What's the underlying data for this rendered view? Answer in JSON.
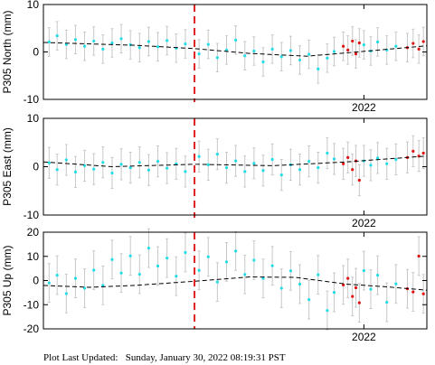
{
  "footer": {
    "label": "Plot Last Updated:",
    "value": "Sunday, January 30, 2022 08:19:31 PST"
  },
  "colors": {
    "main_points": "#22dde8",
    "recent_points": "#e01010",
    "error_bars": "#c8c8c8",
    "trend_line": "#000000",
    "event_line": "#e0201e",
    "axes": "#000000"
  },
  "chart_data": [
    {
      "type": "scatter",
      "ylabel": "P305 North (mm)",
      "ylim": [
        -10,
        10
      ],
      "yticks": [
        -10,
        0,
        10
      ],
      "xlim": [
        2019.2,
        2022.55
      ],
      "xticks": [
        {
          "value": 2022.0,
          "label": "2022"
        }
      ],
      "event_line_x": 2020.52,
      "error_bar_halfwidth": 3,
      "trend": [
        [
          2019.2,
          2.0
        ],
        [
          2020.0,
          1.4
        ],
        [
          2020.52,
          0.7
        ],
        [
          2021.0,
          -0.3
        ],
        [
          2021.5,
          -0.9
        ],
        [
          2021.85,
          -0.2
        ],
        [
          2022.55,
          1.3
        ]
      ],
      "series": [
        {
          "role": "main",
          "points": [
            [
              2019.25,
              2.1
            ],
            [
              2019.32,
              3.4
            ],
            [
              2019.4,
              1.6
            ],
            [
              2019.48,
              2.6
            ],
            [
              2019.56,
              1.2
            ],
            [
              2019.64,
              2.3
            ],
            [
              2019.72,
              0.6
            ],
            [
              2019.8,
              1.9
            ],
            [
              2019.88,
              2.8
            ],
            [
              2019.96,
              1.5
            ],
            [
              2020.04,
              0.9
            ],
            [
              2020.12,
              2.2
            ],
            [
              2020.2,
              1.1
            ],
            [
              2020.28,
              2.4
            ],
            [
              2020.36,
              0.8
            ],
            [
              2020.44,
              1.7
            ],
            [
              2020.56,
              -0.4
            ],
            [
              2020.64,
              1.6
            ],
            [
              2020.72,
              -1.2
            ],
            [
              2020.8,
              0.4
            ],
            [
              2020.88,
              2.5
            ],
            [
              2020.96,
              -0.8
            ],
            [
              2021.04,
              0.2
            ],
            [
              2021.12,
              -2.1
            ],
            [
              2021.2,
              0.6
            ],
            [
              2021.28,
              -1.0
            ],
            [
              2021.36,
              0.3
            ],
            [
              2021.44,
              -1.7
            ],
            [
              2021.52,
              -0.5
            ],
            [
              2021.6,
              -3.6
            ],
            [
              2021.68,
              -1.3
            ],
            [
              2021.74,
              0.1
            ],
            [
              2022.0,
              1.5
            ],
            [
              2022.06,
              0.2
            ],
            [
              2022.12,
              2.1
            ],
            [
              2022.2,
              0.4
            ],
            [
              2022.28,
              1.2
            ]
          ]
        },
        {
          "role": "recent",
          "points": [
            [
              2021.82,
              1.2
            ],
            [
              2021.86,
              0.4
            ],
            [
              2021.9,
              2.3
            ],
            [
              2021.93,
              -0.4
            ],
            [
              2021.96,
              1.9
            ],
            [
              2022.38,
              0.9
            ],
            [
              2022.43,
              1.8
            ],
            [
              2022.48,
              0.6
            ],
            [
              2022.52,
              2.2
            ]
          ]
        }
      ]
    },
    {
      "type": "scatter",
      "ylabel": "P305 East (mm)",
      "ylim": [
        -10,
        10
      ],
      "yticks": [
        -10,
        0,
        10
      ],
      "xlim": [
        2019.2,
        2022.55
      ],
      "xticks": [
        {
          "value": 2022.0,
          "label": "2022"
        }
      ],
      "event_line_x": 2020.52,
      "error_bar_halfwidth": 3.2,
      "trend": [
        [
          2019.2,
          1.0
        ],
        [
          2019.8,
          0.0
        ],
        [
          2020.52,
          0.5
        ],
        [
          2021.2,
          0.2
        ],
        [
          2021.85,
          1.0
        ],
        [
          2022.55,
          2.2
        ]
      ],
      "series": [
        {
          "role": "main",
          "points": [
            [
              2019.25,
              0.8
            ],
            [
              2019.32,
              -0.6
            ],
            [
              2019.4,
              1.4
            ],
            [
              2019.48,
              -1.1
            ],
            [
              2019.56,
              0.2
            ],
            [
              2019.64,
              -0.5
            ],
            [
              2019.72,
              0.9
            ],
            [
              2019.8,
              -1.3
            ],
            [
              2019.88,
              0.5
            ],
            [
              2019.96,
              -0.2
            ],
            [
              2020.04,
              0.9
            ],
            [
              2020.12,
              -0.7
            ],
            [
              2020.2,
              1.1
            ],
            [
              2020.28,
              -0.3
            ],
            [
              2020.36,
              0.6
            ],
            [
              2020.44,
              -1.0
            ],
            [
              2020.56,
              2.1
            ],
            [
              2020.64,
              0.4
            ],
            [
              2020.72,
              2.6
            ],
            [
              2020.8,
              -0.2
            ],
            [
              2020.88,
              1.2
            ],
            [
              2020.96,
              -1.0
            ],
            [
              2021.04,
              0.7
            ],
            [
              2021.12,
              -0.8
            ],
            [
              2021.2,
              1.5
            ],
            [
              2021.28,
              -1.7
            ],
            [
              2021.36,
              0.4
            ],
            [
              2021.44,
              -0.6
            ],
            [
              2021.52,
              1.1
            ],
            [
              2021.6,
              -0.2
            ],
            [
              2021.68,
              2.8
            ],
            [
              2021.74,
              1.6
            ],
            [
              2022.0,
              1.2
            ],
            [
              2022.06,
              0.3
            ],
            [
              2022.12,
              1.8
            ],
            [
              2022.2,
              0.6
            ],
            [
              2022.28,
              1.5
            ]
          ]
        },
        {
          "role": "recent",
          "points": [
            [
              2021.82,
              0.6
            ],
            [
              2021.86,
              1.9
            ],
            [
              2021.9,
              -0.6
            ],
            [
              2021.93,
              1.2
            ],
            [
              2021.96,
              -2.8
            ],
            [
              2022.38,
              1.9
            ],
            [
              2022.43,
              3.2
            ],
            [
              2022.48,
              2.2
            ],
            [
              2022.52,
              2.8
            ]
          ]
        }
      ]
    },
    {
      "type": "scatter",
      "ylabel": "P305 Up (mm)",
      "ylim": [
        -20,
        20
      ],
      "yticks": [
        -20,
        -10,
        0,
        10,
        20
      ],
      "xlim": [
        2019.2,
        2022.55
      ],
      "xticks": [
        {
          "value": 2022.0,
          "label": "2022"
        }
      ],
      "event_line_x": 2020.52,
      "error_bar_halfwidth": 8,
      "trend": [
        [
          2019.2,
          -2.0
        ],
        [
          2019.6,
          -2.8
        ],
        [
          2020.0,
          -2.0
        ],
        [
          2020.52,
          -0.3
        ],
        [
          2021.0,
          1.5
        ],
        [
          2021.4,
          1.3
        ],
        [
          2021.85,
          -1.5
        ],
        [
          2022.2,
          -2.6
        ],
        [
          2022.55,
          -4.0
        ]
      ],
      "series": [
        {
          "role": "main",
          "points": [
            [
              2019.25,
              -1.0
            ],
            [
              2019.32,
              2.2
            ],
            [
              2019.4,
              -5.4
            ],
            [
              2019.48,
              0.9
            ],
            [
              2019.56,
              -3.2
            ],
            [
              2019.64,
              4.3
            ],
            [
              2019.72,
              -2.0
            ],
            [
              2019.8,
              8.7
            ],
            [
              2019.88,
              3.1
            ],
            [
              2019.96,
              10.2
            ],
            [
              2020.04,
              2.6
            ],
            [
              2020.12,
              13.4
            ],
            [
              2020.2,
              6.0
            ],
            [
              2020.28,
              9.3
            ],
            [
              2020.36,
              1.8
            ],
            [
              2020.44,
              11.6
            ],
            [
              2020.56,
              4.2
            ],
            [
              2020.64,
              9.8
            ],
            [
              2020.72,
              -0.6
            ],
            [
              2020.8,
              7.7
            ],
            [
              2020.88,
              12.2
            ],
            [
              2020.96,
              2.5
            ],
            [
              2021.04,
              8.4
            ],
            [
              2021.12,
              0.9
            ],
            [
              2021.2,
              6.1
            ],
            [
              2021.28,
              -3.2
            ],
            [
              2021.36,
              4.0
            ],
            [
              2021.44,
              -1.5
            ],
            [
              2021.52,
              -7.9
            ],
            [
              2021.6,
              2.4
            ],
            [
              2021.68,
              -12.4
            ],
            [
              2021.74,
              -4.9
            ],
            [
              2022.0,
              4.1
            ],
            [
              2022.06,
              -3.6
            ],
            [
              2022.12,
              2.2
            ],
            [
              2022.2,
              -9.0
            ],
            [
              2022.28,
              -1.4
            ]
          ]
        },
        {
          "role": "recent",
          "points": [
            [
              2021.82,
              -1.8
            ],
            [
              2021.86,
              0.9
            ],
            [
              2021.9,
              -6.6
            ],
            [
              2021.93,
              -3.0
            ],
            [
              2021.96,
              -9.2
            ],
            [
              2022.38,
              -3.4
            ],
            [
              2022.43,
              -4.7
            ],
            [
              2022.48,
              10.1
            ],
            [
              2022.52,
              -5.5
            ]
          ]
        }
      ]
    }
  ]
}
